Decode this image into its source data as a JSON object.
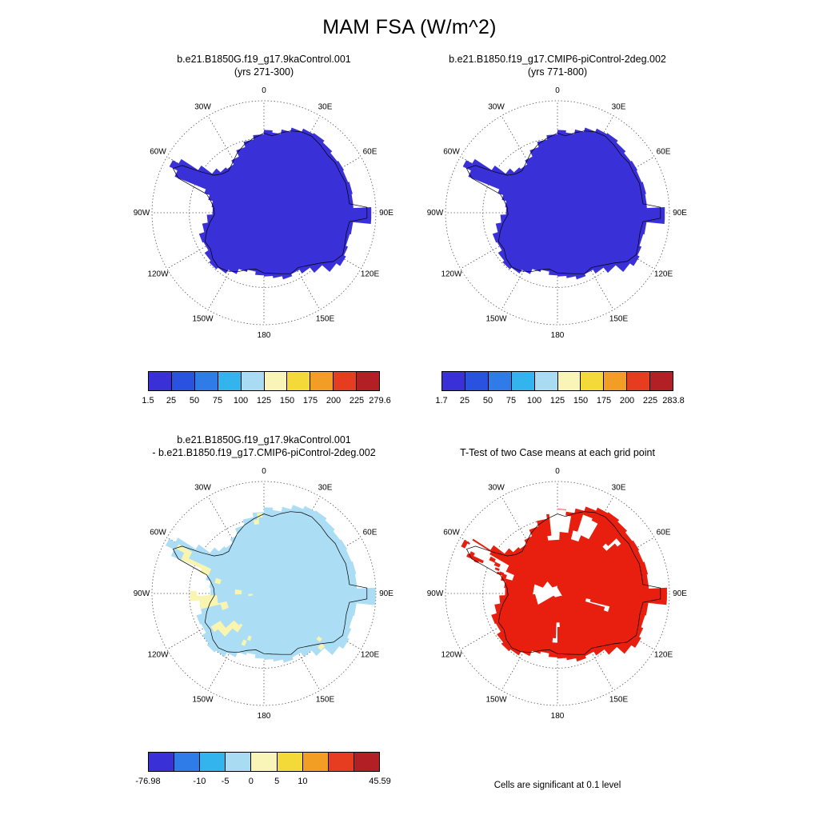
{
  "main_title": "MAM FSA (W/m^2)",
  "map_common": {
    "grid_color": "#555555",
    "coastline_color": "#000000",
    "lon_labels": [
      {
        "text": "0",
        "angle": 0
      },
      {
        "text": "30E",
        "angle": 30
      },
      {
        "text": "60E",
        "angle": 60
      },
      {
        "text": "90E",
        "angle": 90
      },
      {
        "text": "120E",
        "angle": 120
      },
      {
        "text": "150E",
        "angle": 150
      },
      {
        "text": "180",
        "angle": 180
      },
      {
        "text": "150W",
        "angle": 210
      },
      {
        "text": "120W",
        "angle": 240
      },
      {
        "text": "90W",
        "angle": 270
      },
      {
        "text": "60W",
        "angle": 300
      },
      {
        "text": "30W",
        "angle": 330
      }
    ]
  },
  "panels": [
    {
      "id": "case1",
      "title_lines": [
        "b.e21.B1850G.f19_g17.9kaControl.001",
        "(yrs 271-300)"
      ],
      "map_style": "solid",
      "map_fill": "#3a30d8",
      "colorbar": {
        "colors": [
          "#3a30d8",
          "#2a52e0",
          "#2f7ce8",
          "#33b4ec",
          "#a9dbf3",
          "#f9f5b8",
          "#f3da39",
          "#f29d23",
          "#e63c1f",
          "#b22025"
        ],
        "labels": [
          "1.5",
          "25",
          "50",
          "75",
          "100",
          "125",
          "150",
          "175",
          "200",
          "225",
          "279.6"
        ]
      }
    },
    {
      "id": "case2",
      "title_lines": [
        "b.e21.B1850.f19_g17.CMIP6-piControl-2deg.002",
        "(yrs 771-800)"
      ],
      "map_style": "solid",
      "map_fill": "#3a30d8",
      "colorbar": {
        "colors": [
          "#3a30d8",
          "#2a52e0",
          "#2f7ce8",
          "#33b4ec",
          "#a9dbf3",
          "#f9f5b8",
          "#f3da39",
          "#f29d23",
          "#e63c1f",
          "#b22025"
        ],
        "labels": [
          "1.7",
          "25",
          "50",
          "75",
          "100",
          "125",
          "150",
          "175",
          "200",
          "225",
          "283.8"
        ]
      }
    },
    {
      "id": "diff",
      "title_lines": [
        "b.e21.B1850G.f19_g17.9kaControl.001",
        "- b.e21.B1850.f19_g17.CMIP6-piControl-2deg.002"
      ],
      "map_style": "diff",
      "map_fill": "#abddf4",
      "patch_fill": "#f9f5b0",
      "colorbar": {
        "colors": [
          "#3a30d8",
          "#2f7ce8",
          "#33b4ec",
          "#a9dbf3",
          "#f9f5b8",
          "#f3da39",
          "#f29d23",
          "#e63c1f",
          "#b22025"
        ],
        "labels": [
          "-76.98",
          "-10",
          "-5",
          "0",
          "5",
          "10",
          "45.59"
        ],
        "positions": [
          0,
          0.222,
          0.333,
          0.444,
          0.556,
          0.667,
          1
        ]
      }
    },
    {
      "id": "ttest",
      "title_lines": [
        "T-Test of two Case means at each grid point"
      ],
      "map_style": "ttest",
      "map_fill": "#e81e0f",
      "caption": "Cells are significant at 0.1 level"
    }
  ],
  "chart_data": [
    {
      "type": "heatmap",
      "subtype": "south_polar_stereographic_map",
      "region": "Antarctica (south polar view)",
      "title": "b.e21.B1850G.f19_g17.9kaControl.001 (yrs 271-300)",
      "variable": "FSA",
      "season": "MAM",
      "units": "W/m^2",
      "data_min": 1.5,
      "data_max": 279.6,
      "colorbar_ticks": [
        1.5,
        25,
        50,
        75,
        100,
        125,
        150,
        175,
        200,
        225,
        279.6
      ],
      "observed_pattern": "Entire Antarctic continent in lowest bin (about 1.5-25 W/m^2), uniform dark blue-violet fill"
    },
    {
      "type": "heatmap",
      "subtype": "south_polar_stereographic_map",
      "region": "Antarctica (south polar view)",
      "title": "b.e21.B1850.f19_g17.CMIP6-piControl-2deg.002 (yrs 771-800)",
      "variable": "FSA",
      "season": "MAM",
      "units": "W/m^2",
      "data_min": 1.7,
      "data_max": 283.8,
      "colorbar_ticks": [
        1.7,
        25,
        50,
        75,
        100,
        125,
        150,
        175,
        200,
        225,
        283.8
      ],
      "observed_pattern": "Entire Antarctic continent in lowest bin (about 1.7-25 W/m^2), uniform dark blue-violet fill"
    },
    {
      "type": "heatmap",
      "subtype": "south_polar_stereographic_map",
      "region": "Antarctica (south polar view)",
      "title": "b.e21.B1850G.f19_g17.9kaControl.001 - b.e21.B1850.f19_g17.CMIP6-piControl-2deg.002",
      "variable": "FSA difference",
      "season": "MAM",
      "units": "W/m^2",
      "data_min": -76.98,
      "data_max": 45.59,
      "colorbar_ticks": [
        -76.98,
        -10,
        -5,
        0,
        5,
        10,
        45.59
      ],
      "observed_pattern": "Mostly -5 to 0 W/m^2 (light blue) over the continent, with 0 to +5 W/m^2 (pale yellow) patches over West Antarctica, the Antarctic Peninsula and scattered coastal cells"
    },
    {
      "type": "map",
      "subtype": "south_polar_stereographic_map",
      "region": "Antarctica (south polar view)",
      "title": "T-Test of two Case means at each grid point",
      "note": "Cells are significant at 0.1 level",
      "observed_pattern": "Red (significant) grid cells cover most of Antarctica, with white (non-significant) gaps near the pole, along the Peninsula, and in bands near the 0E sector"
    }
  ]
}
